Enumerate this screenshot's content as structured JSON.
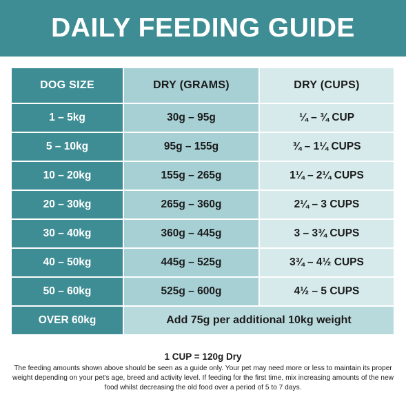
{
  "title": "DAILY FEEDING GUIDE",
  "columns": [
    "DOG SIZE",
    "DRY (GRAMS)",
    "DRY (CUPS)"
  ],
  "rows": [
    {
      "size": "1 – 5kg",
      "grams": "30g – 95g",
      "cups": "¼ – ¾ CUP"
    },
    {
      "size": "5 – 10kg",
      "grams": "95g – 155g",
      "cups": "¾ – 1¼ CUPS"
    },
    {
      "size": "10 – 20kg",
      "grams": "155g – 265g",
      "cups": "1¼ – 2¼ CUPS"
    },
    {
      "size": "20 – 30kg",
      "grams": "265g – 360g",
      "cups": "2¼ – 3 CUPS"
    },
    {
      "size": "30 – 40kg",
      "grams": "360g – 445g",
      "cups": "3 – 3¾ CUPS"
    },
    {
      "size": "40 – 50kg",
      "grams": "445g – 525g",
      "cups": "3¾ – 4½ CUPS"
    },
    {
      "size": "50 – 60kg",
      "grams": "525g – 600g",
      "cups": "4½ – 5 CUPS"
    }
  ],
  "over_row": {
    "size": "OVER 60kg",
    "note": "Add 75g per additional 10kg weight"
  },
  "footer": {
    "cup_equivalence": "1 CUP = 120g Dry",
    "disclaimer": "The feeding amounts shown above should be seen as a guide only. Your pet may need more or less to maintain its proper weight depending on your pet's age, breed and activity level. If feeding for the first time, mix increasing amounts of the new food whilst decreasing the old food over a period of 5 to 7 days."
  },
  "colors": {
    "teal_dark": "#3e8d94",
    "teal_mid": "#a7d0d4",
    "teal_light": "#d6eaeb"
  }
}
